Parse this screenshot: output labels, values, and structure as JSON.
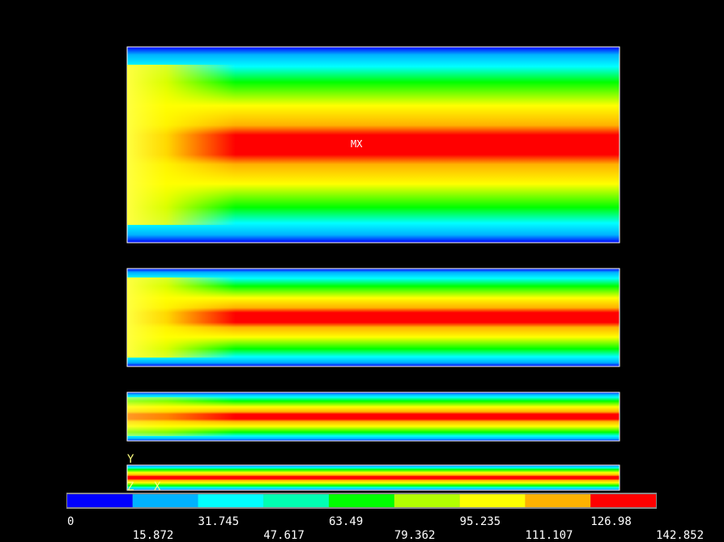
{
  "legend": {
    "colors": [
      "#0000ff",
      "#00b2ff",
      "#00ffff",
      "#00ffb2",
      "#00ff00",
      "#b2ff00",
      "#ffff00",
      "#ffb200",
      "#ff0000"
    ],
    "labels": [
      "0",
      "15.872",
      "31.745",
      "47.617",
      "63.49",
      "79.362",
      "95.235",
      "111.107",
      "126.98",
      "142.852"
    ]
  },
  "annotations": {
    "max": "MX",
    "axis_y": "Y",
    "axis_z": "Z",
    "axis_x": "X"
  }
}
